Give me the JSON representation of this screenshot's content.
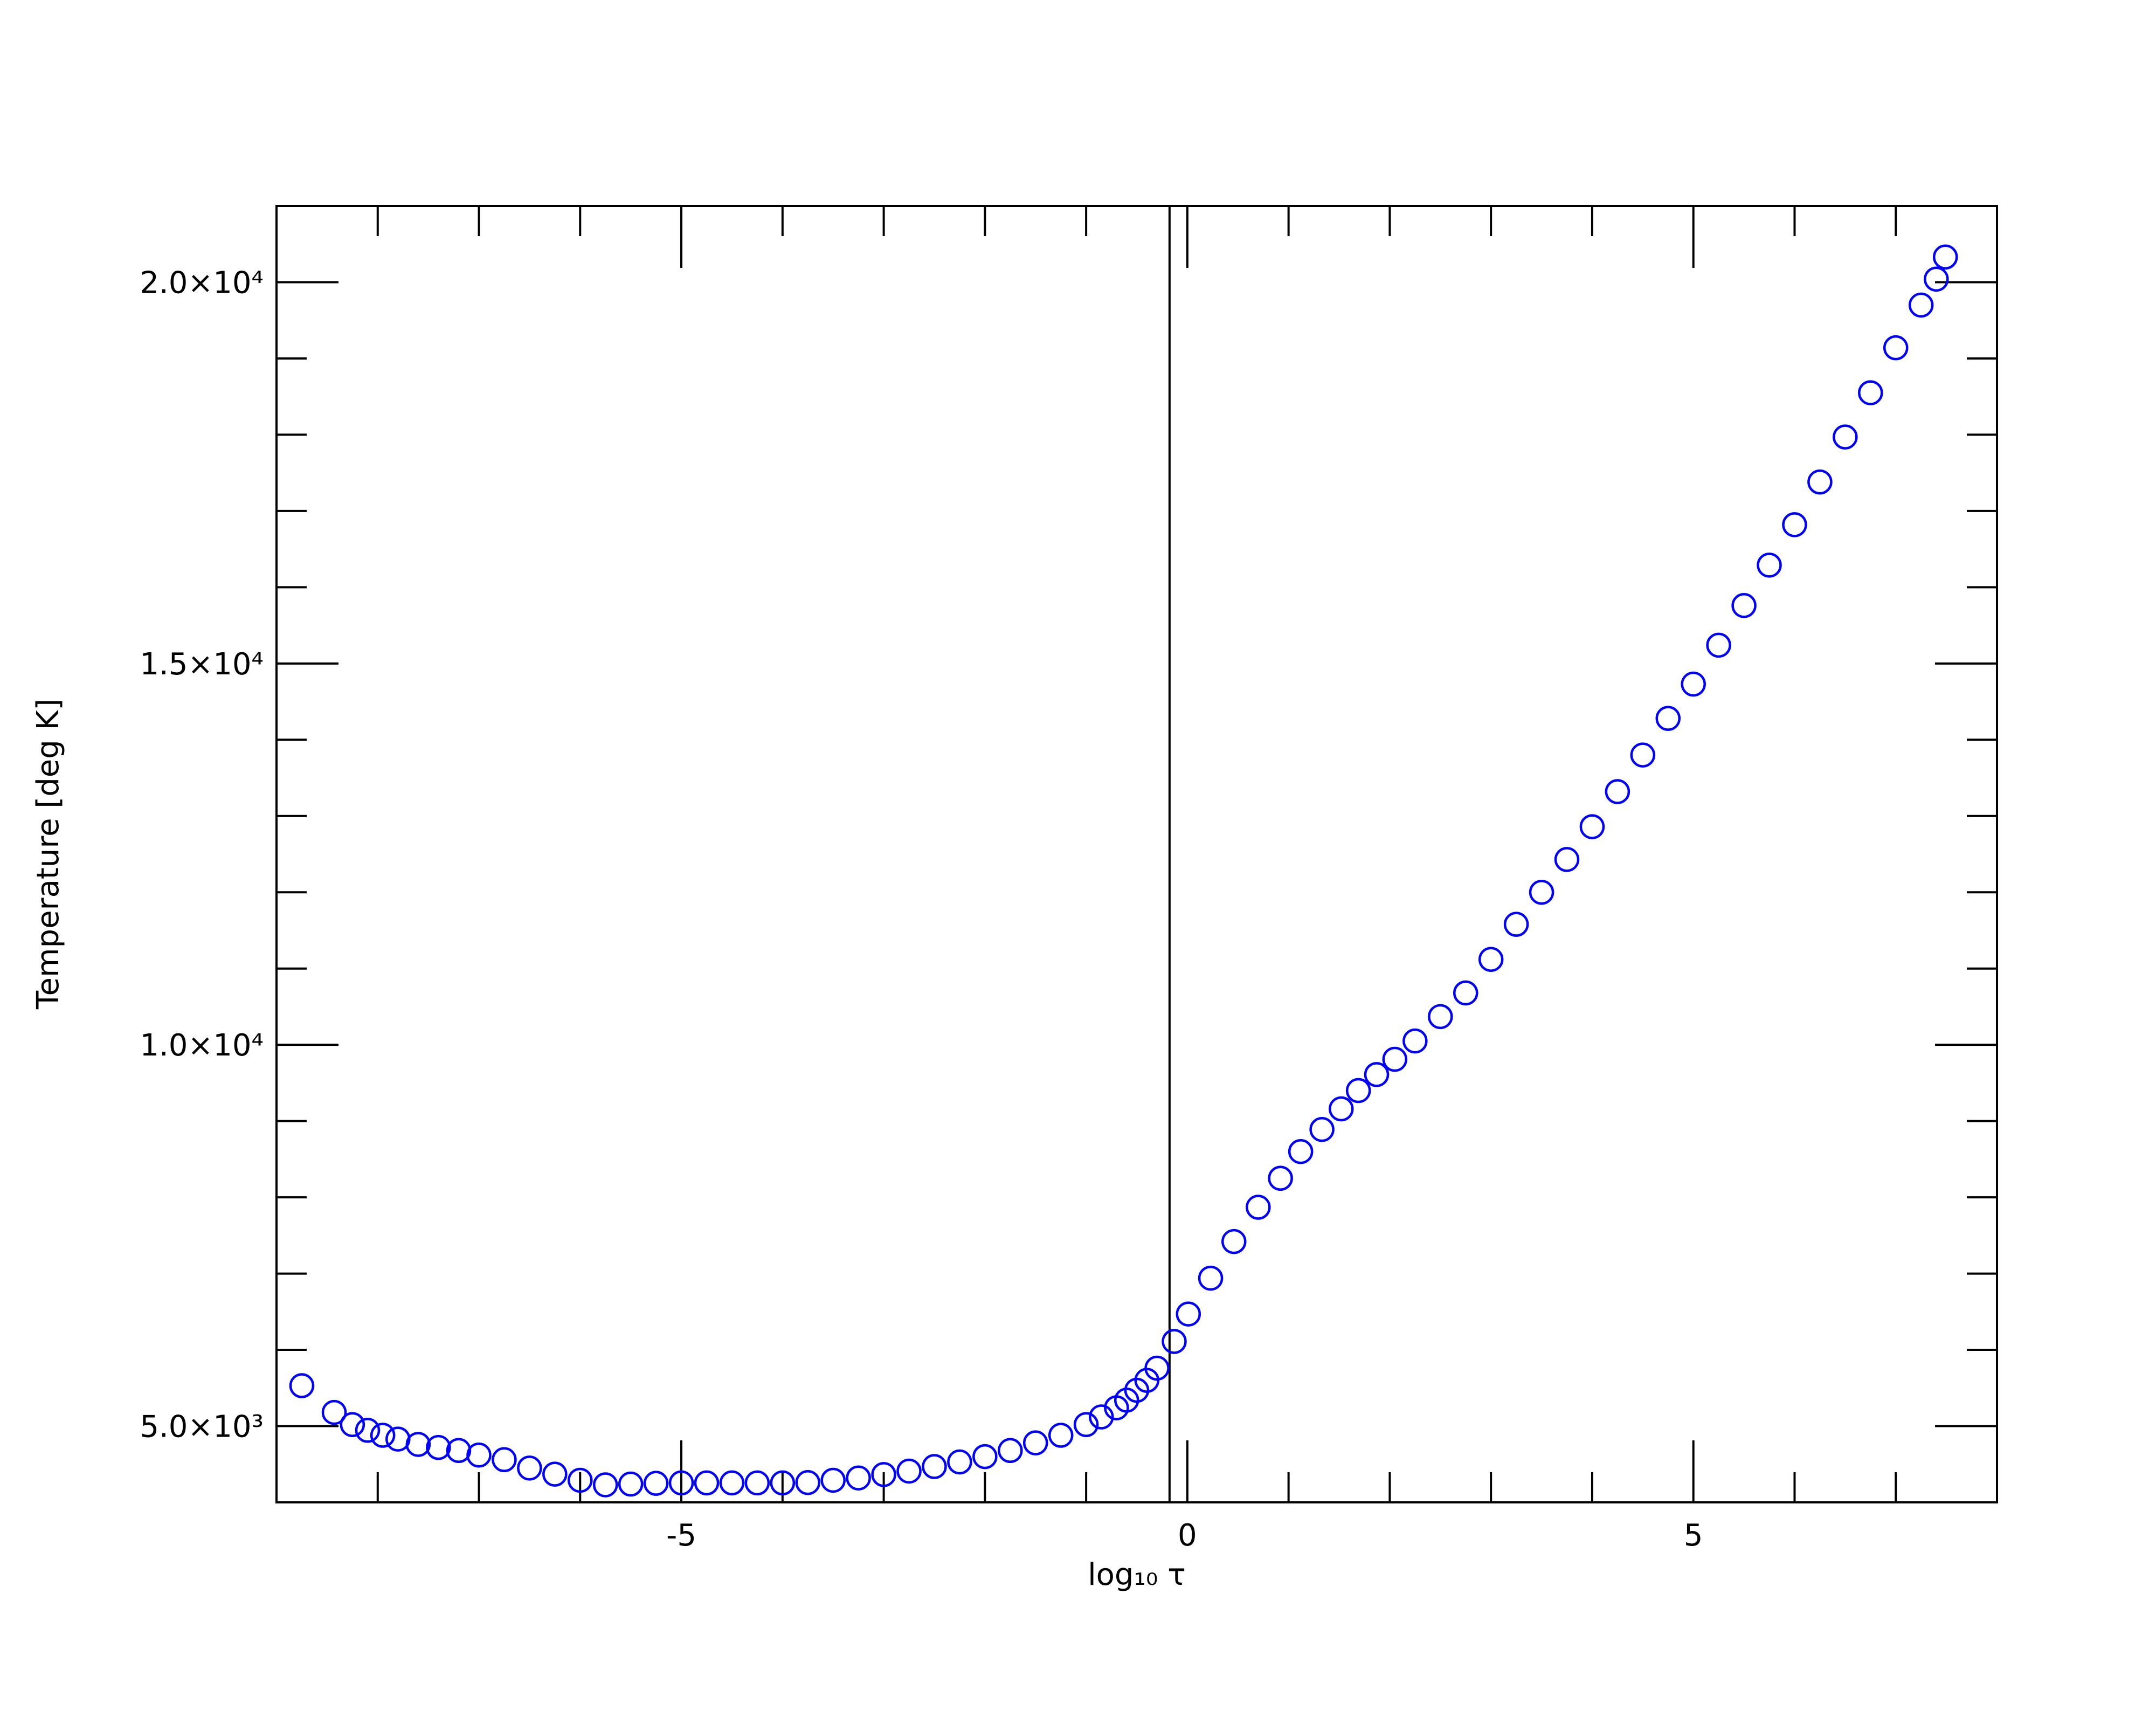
{
  "chart_data": {
    "type": "scatter",
    "xlabel": "log₁₀ τ",
    "ylabel": "Temperature [deg K]",
    "xlim": [
      -9,
      8
    ],
    "ylim": [
      4000,
      21000
    ],
    "xticks": [
      -5,
      0,
      5
    ],
    "yticks": [
      {
        "value": 5000,
        "label": "5.0×10³"
      },
      {
        "value": 10000,
        "label": "1.0×10⁴"
      },
      {
        "value": 15000,
        "label": "1.5×10⁴"
      },
      {
        "value": 20000,
        "label": "2.0×10⁴"
      }
    ],
    "minor_xticks": [
      -8,
      -7,
      -6,
      -4,
      -3,
      -2,
      -1,
      1,
      2,
      3,
      4,
      6,
      7
    ],
    "minor_yticks": [
      6000,
      7000,
      8000,
      9000,
      11000,
      12000,
      13000,
      14000,
      16000,
      17000,
      18000,
      19000
    ],
    "vline": -0.176,
    "color": "#0000ff",
    "x": [
      -8.75,
      -8.43,
      -8.25,
      -8.1,
      -7.95,
      -7.8,
      -7.6,
      -7.4,
      -7.2,
      -7.0,
      -6.75,
      -6.5,
      -6.25,
      -6.0,
      -5.75,
      -5.5,
      -5.25,
      -5.0,
      -4.75,
      -4.5,
      -4.25,
      -4.0,
      -3.75,
      -3.5,
      -3.25,
      -3.0,
      -2.75,
      -2.5,
      -2.25,
      -2.0,
      -1.75,
      -1.5,
      -1.25,
      -1.0,
      -0.85,
      -0.7,
      -0.6,
      -0.5,
      -0.4,
      -0.3,
      -0.13,
      0.01,
      0.23,
      0.46,
      0.7,
      0.92,
      1.12,
      1.33,
      1.52,
      1.69,
      1.87,
      2.05,
      2.25,
      2.5,
      2.75,
      3.0,
      3.25,
      3.5,
      3.75,
      4.0,
      4.25,
      4.5,
      4.75,
      5.0,
      5.25,
      5.5,
      5.75,
      6.0,
      6.25,
      6.5,
      6.75,
      7.0,
      7.25,
      7.4,
      7.49
    ],
    "values": [
      5530,
      5180,
      5020,
      4945,
      4880,
      4830,
      4760,
      4720,
      4680,
      4620,
      4560,
      4450,
      4370,
      4290,
      4230,
      4240,
      4250,
      4255,
      4255,
      4255,
      4255,
      4255,
      4260,
      4290,
      4320,
      4365,
      4410,
      4470,
      4530,
      4600,
      4680,
      4780,
      4880,
      5020,
      5120,
      5240,
      5340,
      5470,
      5600,
      5760,
      6110,
      6470,
      6940,
      7420,
      7870,
      8250,
      8600,
      8890,
      9160,
      9400,
      9610,
      9810,
      10050,
      10370,
      10680,
      11120,
      11580,
      12000,
      12430,
      12860,
      13320,
      13800,
      14280,
      14730,
      15240,
      15760,
      16290,
      16820,
      17380,
      17970,
      18550,
      19140,
      19700,
      20040,
      20330
    ]
  }
}
